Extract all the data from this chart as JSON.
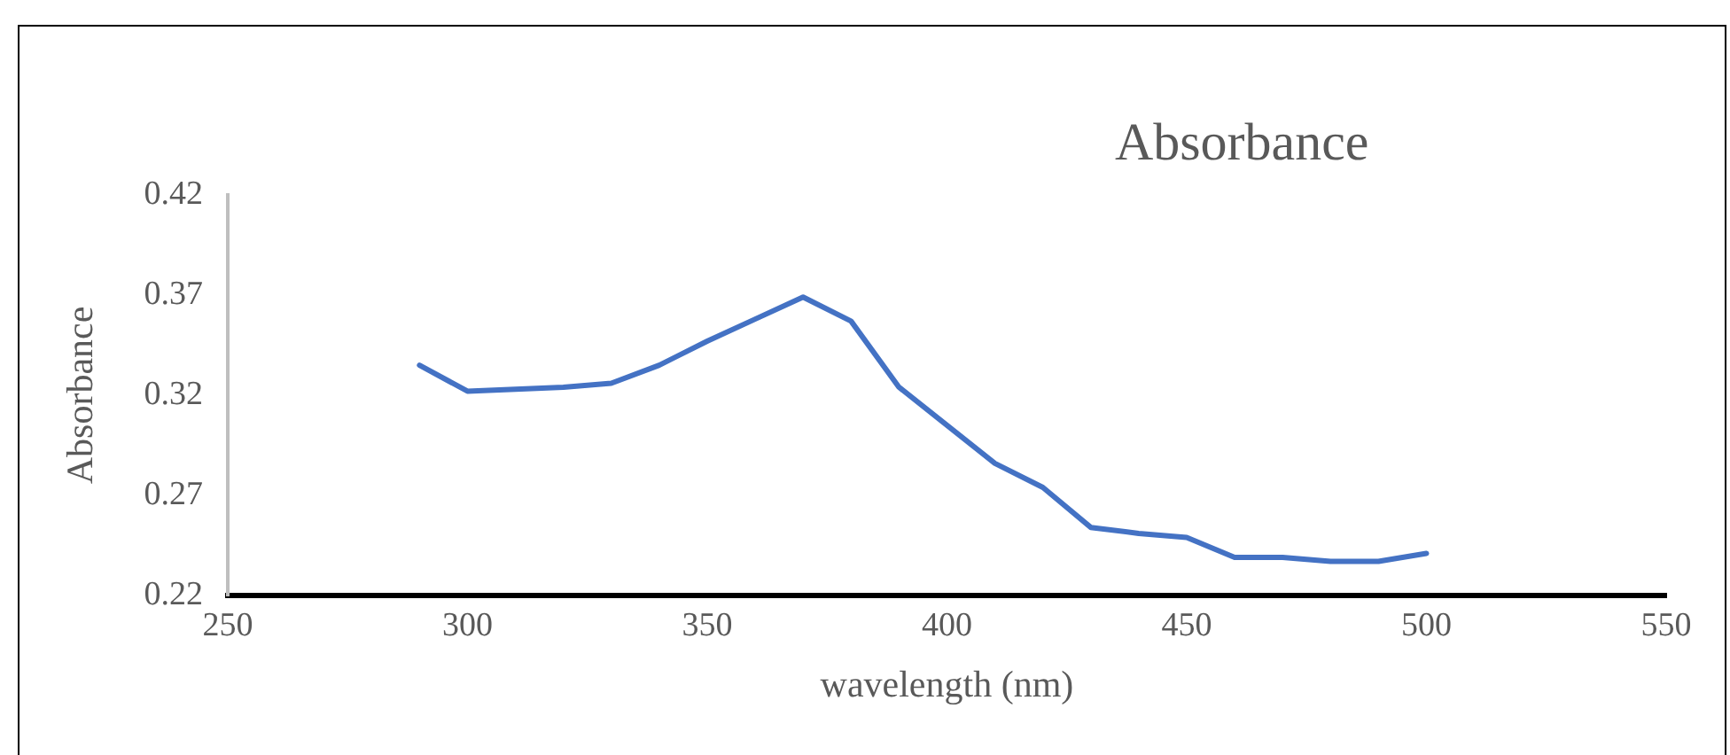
{
  "chart_data": {
    "type": "line",
    "title": "Absorbance",
    "xlabel": "wavelength (nm)",
    "ylabel": "Absorbance",
    "x": [
      290,
      300,
      310,
      320,
      330,
      340,
      350,
      360,
      370,
      380,
      390,
      400,
      410,
      420,
      430,
      440,
      450,
      460,
      470,
      480,
      490,
      500
    ],
    "series": [
      {
        "color": "#4472c4",
        "values": [
          0.335,
          0.322,
          0.323,
          0.324,
          0.326,
          0.335,
          0.347,
          0.358,
          0.369,
          0.357,
          0.324,
          0.305,
          0.286,
          0.274,
          0.254,
          0.251,
          0.249,
          0.239,
          0.239,
          0.237,
          0.237,
          0.241
        ]
      }
    ],
    "xlim": [
      250,
      550
    ],
    "xticks": [
      250,
      300,
      350,
      400,
      450,
      500,
      550
    ],
    "ylim": [
      0.22,
      0.42
    ],
    "yticks": [
      0.22,
      0.27,
      0.32,
      0.37,
      0.42
    ],
    "grid": false,
    "legend": false,
    "marker": "none",
    "line_style": "solid"
  }
}
